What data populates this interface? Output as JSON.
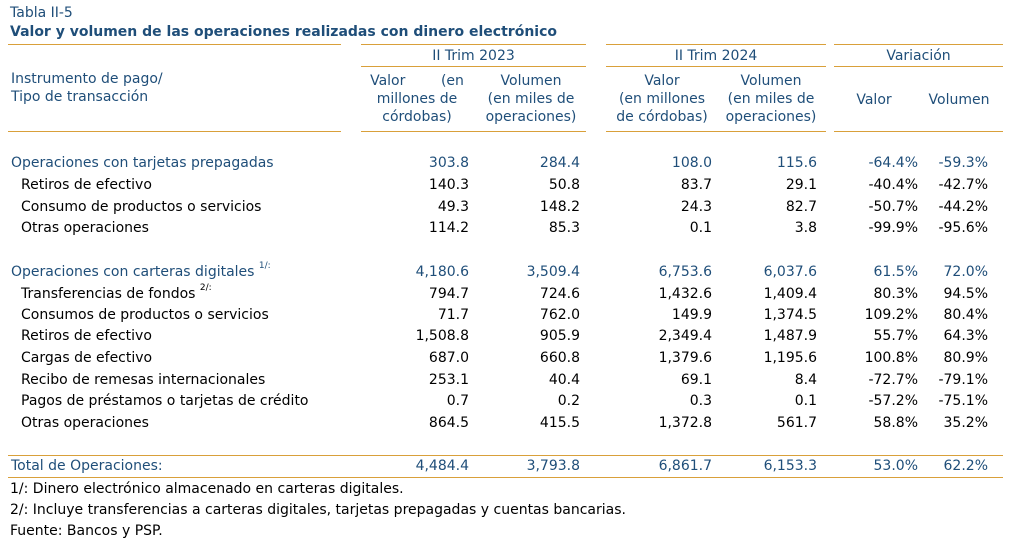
{
  "table_label": "Tabla II-5",
  "title": "Valor y volumen de las operaciones realizadas con dinero electrónico",
  "headers": {
    "instrument": "Instrumento de pago/\nTipo de transacción",
    "period1": "II Trim 2023",
    "period2": "II Trim 2024",
    "variation": "Variación",
    "valor_mill": "Valor        (en\nmillones de\ncórdobas)",
    "volumen_miles": "Volumen\n(en miles de\noperaciones)",
    "valor_mill_2024": "Valor\n(en millones\nde córdobas)",
    "volumen_miles_2024": "Volumen\n(en miles de\noperaciones)",
    "var_valor": "Valor",
    "var_volumen": "Volumen"
  },
  "groups": [
    {
      "label": "Operaciones con tarjetas prepagadas",
      "note": "",
      "values": [
        "303.8",
        "284.4",
        "108.0",
        "115.6",
        "-64.4%",
        "-59.3%"
      ],
      "rows": [
        {
          "label": "Retiros de efectivo",
          "note": "",
          "values": [
            "140.3",
            "50.8",
            "83.7",
            "29.1",
            "-40.4%",
            "-42.7%"
          ]
        },
        {
          "label": "Consumo de productos o servicios",
          "note": "",
          "values": [
            "49.3",
            "148.2",
            "24.3",
            "82.7",
            "-50.7%",
            "-44.2%"
          ]
        },
        {
          "label": "Otras operaciones",
          "note": "",
          "values": [
            "114.2",
            "85.3",
            "0.1",
            "3.8",
            "-99.9%",
            "-95.6%"
          ]
        }
      ]
    },
    {
      "label": "Operaciones con carteras digitales",
      "note": "1/:",
      "values": [
        "4,180.6",
        "3,509.4",
        "6,753.6",
        "6,037.6",
        "61.5%",
        "72.0%"
      ],
      "rows": [
        {
          "label": "Transferencias de fondos",
          "note": "2/:",
          "values": [
            "794.7",
            "724.6",
            "1,432.6",
            "1,409.4",
            "80.3%",
            "94.5%"
          ]
        },
        {
          "label": "Consumos de productos o servicios",
          "note": "",
          "values": [
            "71.7",
            "762.0",
            "149.9",
            "1,374.5",
            "109.2%",
            "80.4%"
          ]
        },
        {
          "label": "Retiros de efectivo",
          "note": "",
          "values": [
            "1,508.8",
            "905.9",
            "2,349.4",
            "1,487.9",
            "55.7%",
            "64.3%"
          ]
        },
        {
          "label": "Cargas de efectivo",
          "note": "",
          "values": [
            "687.0",
            "660.8",
            "1,379.6",
            "1,195.6",
            "100.8%",
            "80.9%"
          ]
        },
        {
          "label": "Recibo de remesas internacionales",
          "note": "",
          "values": [
            "253.1",
            "40.4",
            "69.1",
            "8.4",
            "-72.7%",
            "-79.1%"
          ]
        },
        {
          "label": "Pagos de préstamos o tarjetas de crédito",
          "note": "",
          "values": [
            "0.7",
            "0.2",
            "0.3",
            "0.1",
            "-57.2%",
            "-75.1%"
          ]
        },
        {
          "label": "Otras operaciones",
          "note": "",
          "values": [
            "864.5",
            "415.5",
            "1,372.8",
            "561.7",
            "58.8%",
            "35.2%"
          ]
        }
      ]
    }
  ],
  "total": {
    "label": "Total de Operaciones:",
    "values": [
      "4,484.4",
      "3,793.8",
      "6,861.7",
      "6,153.3",
      "53.0%",
      "62.2%"
    ]
  },
  "footnotes": [
    "1/: Dinero electrónico almacenado en carteras digitales.",
    "2/: Incluye transferencias a carteras digitales, tarjetas prepagadas y cuentas bancarias.",
    "Fuente: Bancos y PSP."
  ],
  "colors": {
    "accent_line": "#d9a03a",
    "blue_text": "#1f4e79"
  }
}
